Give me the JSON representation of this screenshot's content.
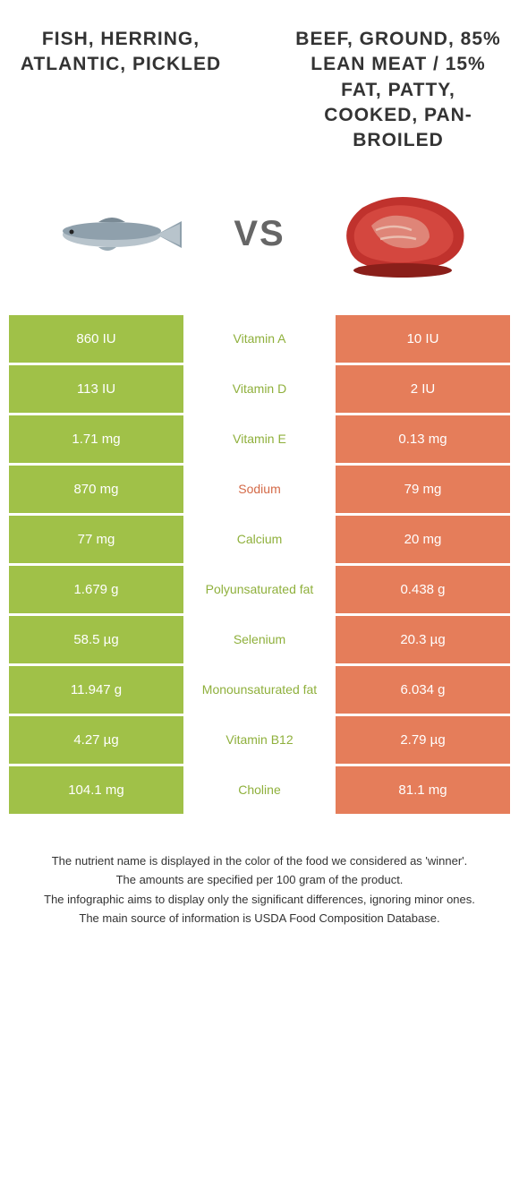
{
  "colors": {
    "left_bg": "#a0c148",
    "right_bg": "#e57d5a",
    "nutrient_left": "#8fb03c",
    "nutrient_right": "#d46a48"
  },
  "left_title": "FISH, HERRING, ATLANTIC, PICKLED",
  "right_title": "BEEF, GROUND, 85% LEAN MEAT / 15% FAT, PATTY, COOKED, PAN-BROILED",
  "vs": "VS",
  "rows": [
    {
      "nutrient": "Vitamin A",
      "left": "860 IU",
      "right": "10 IU",
      "winner": "left"
    },
    {
      "nutrient": "Vitamin D",
      "left": "113 IU",
      "right": "2 IU",
      "winner": "left"
    },
    {
      "nutrient": "Vitamin E",
      "left": "1.71 mg",
      "right": "0.13 mg",
      "winner": "left"
    },
    {
      "nutrient": "Sodium",
      "left": "870 mg",
      "right": "79 mg",
      "winner": "right"
    },
    {
      "nutrient": "Calcium",
      "left": "77 mg",
      "right": "20 mg",
      "winner": "left"
    },
    {
      "nutrient": "Polyunsaturated fat",
      "left": "1.679 g",
      "right": "0.438 g",
      "winner": "left"
    },
    {
      "nutrient": "Selenium",
      "left": "58.5 µg",
      "right": "20.3 µg",
      "winner": "left"
    },
    {
      "nutrient": "Monounsaturated fat",
      "left": "11.947 g",
      "right": "6.034 g",
      "winner": "left"
    },
    {
      "nutrient": "Vitamin B12",
      "left": "4.27 µg",
      "right": "2.79 µg",
      "winner": "left"
    },
    {
      "nutrient": "Choline",
      "left": "104.1 mg",
      "right": "81.1 mg",
      "winner": "left"
    }
  ],
  "footnotes": [
    "The nutrient name is displayed in the color of the food we considered as 'winner'.",
    "The amounts are specified per 100 gram of the product.",
    "The infographic aims to display only the significant differences, ignoring minor ones.",
    "The main source of information is USDA Food Composition Database."
  ]
}
